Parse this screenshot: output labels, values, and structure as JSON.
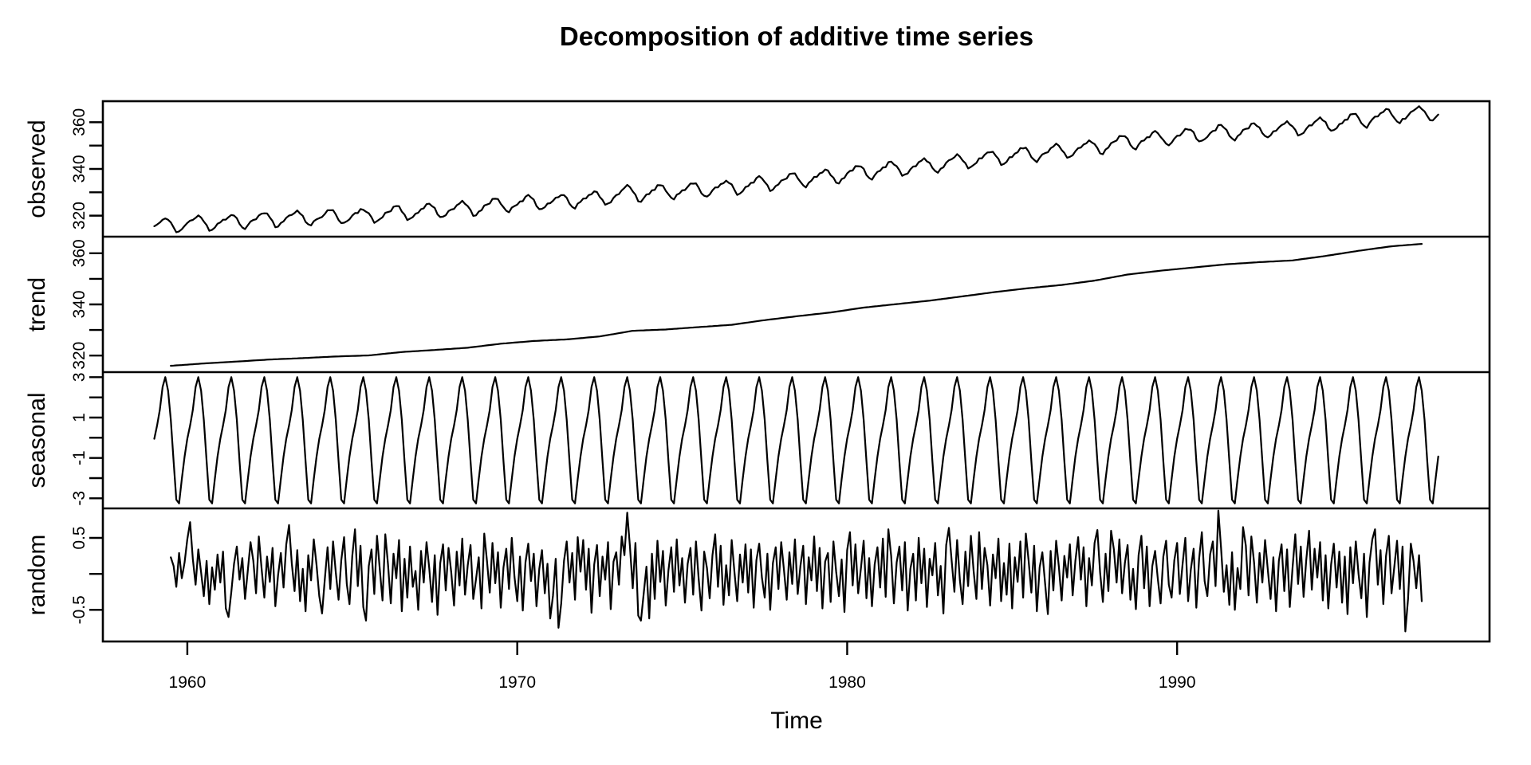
{
  "figure": {
    "title": "Decomposition of additive time series",
    "x_axis_label": "Time"
  },
  "chart_data": {
    "type": "line",
    "title": "Decomposition of additive time series",
    "xlabel": "Time",
    "line_color": "#000000",
    "background_color": "#ffffff",
    "grid": "off",
    "x_start": 1959,
    "frequency": 12,
    "n_points": 468,
    "xlim": [
      1957.44,
      1999.47
    ],
    "x_ticks": [
      1960,
      1970,
      1980,
      1990
    ],
    "x_tick_labels": [
      "1960",
      "1970",
      "1980",
      "1990"
    ],
    "panels": [
      {
        "name": "observed",
        "ylim": [
          311.0,
          369.0
        ],
        "tick_values": [
          320,
          330,
          340,
          350,
          360
        ],
        "tick_labels": [
          "320",
          "",
          "340",
          "",
          "360"
        ],
        "derivation": "trend + seasonal + random"
      },
      {
        "name": "trend",
        "ylim": [
          313.5,
          366.5
        ],
        "tick_values": [
          320,
          330,
          340,
          350,
          360
        ],
        "tick_labels": [
          "320",
          "",
          "340",
          "",
          "360"
        ],
        "anchor_start_year": 1959.5,
        "anchor_step_years": 1,
        "annual_values": [
          315.98,
          316.91,
          317.64,
          318.45,
          318.99,
          319.62,
          320.04,
          321.37,
          322.18,
          323.05,
          324.62,
          325.68,
          326.32,
          327.46,
          329.68,
          330.19,
          331.12,
          332.03,
          333.84,
          335.41,
          336.84,
          338.76,
          340.12,
          341.48,
          343.15,
          344.87,
          346.35,
          347.61,
          349.31,
          351.69,
          353.2,
          354.45,
          355.7,
          356.54,
          357.21,
          358.96,
          360.97,
          362.74,
          363.76
        ],
        "plot_range_years": [
          1959.5,
          1997.417
        ]
      },
      {
        "name": "seasonal",
        "ylim": [
          -3.5,
          3.25
        ],
        "tick_values": [
          -3,
          -2,
          -1,
          0,
          1,
          2,
          3
        ],
        "tick_labels": [
          "-3",
          "",
          "-1",
          "",
          "1",
          "",
          "3"
        ],
        "monthly_figure": [
          -0.05,
          0.61,
          1.37,
          2.51,
          3.0,
          2.33,
          0.89,
          -1.16,
          -3.07,
          -3.25,
          -2.05,
          -0.93
        ]
      },
      {
        "name": "random",
        "ylim": [
          -0.94,
          0.91
        ],
        "tick_values": [
          -0.5,
          0,
          0.5
        ],
        "tick_labels": [
          "-0.5",
          "",
          "0.5"
        ],
        "values": [
          null,
          null,
          null,
          null,
          null,
          null,
          0.23,
          0.11,
          -0.18,
          0.29,
          -0.06,
          0.16,
          0.48,
          0.72,
          0.21,
          -0.15,
          0.34,
          0.02,
          -0.31,
          0.18,
          -0.42,
          0.09,
          -0.22,
          0.27,
          -0.12,
          0.31,
          -0.48,
          -0.6,
          -0.25,
          0.14,
          0.38,
          -0.08,
          0.22,
          -0.35,
          0.05,
          0.44,
          0.18,
          -0.27,
          0.52,
          0.08,
          -0.33,
          0.24,
          -0.11,
          0.36,
          -0.45,
          -0.02,
          0.29,
          -0.19,
          0.41,
          0.68,
          0.15,
          -0.24,
          0.33,
          -0.38,
          0.07,
          -0.52,
          0.26,
          -0.09,
          0.48,
          0.12,
          -0.31,
          -0.55,
          -0.08,
          0.37,
          -0.21,
          0.45,
          0.02,
          -0.36,
          0.19,
          0.51,
          -0.14,
          -0.42,
          0.25,
          0.62,
          -0.17,
          0.39,
          -0.46,
          -0.65,
          0.11,
          0.34,
          -0.28,
          0.53,
          0.06,
          -0.37,
          0.55,
          0.13,
          -0.41,
          0.28,
          -0.06,
          0.47,
          -0.52,
          0.21,
          -0.33,
          0.38,
          -0.18,
          0.04,
          -0.5,
          0.32,
          -0.12,
          0.44,
          0.08,
          -0.39,
          0.26,
          -0.57,
          0.15,
          0.41,
          -0.23,
          0.36,
          0.02,
          -0.44,
          0.31,
          -0.16,
          0.49,
          -0.29,
          0.12,
          0.4,
          -0.35,
          -0.07,
          0.23,
          -0.48,
          0.56,
          0.18,
          -0.26,
          0.43,
          -0.13,
          0.3,
          -0.47,
          0.09,
          0.35,
          -0.21,
          0.5,
          -0.04,
          -0.38,
          0.24,
          -0.51,
          0.16,
          0.42,
          -0.1,
          0.28,
          -0.45,
          0.07,
          0.33,
          -0.27,
          0.14,
          -0.62,
          -0.3,
          0.21,
          -0.75,
          -0.41,
          0.18,
          0.45,
          -0.12,
          0.29,
          -0.36,
          0.51,
          0.03,
          0.47,
          -0.22,
          0.35,
          -0.54,
          0.13,
          0.4,
          -0.31,
          0.24,
          -0.08,
          0.44,
          -0.49,
          0.17,
          0.3,
          -0.15,
          0.52,
          0.26,
          0.85,
          0.38,
          -0.2,
          0.43,
          -0.58,
          -0.65,
          -0.27,
          0.1,
          -0.62,
          0.28,
          -0.35,
          0.46,
          -0.11,
          0.32,
          -0.44,
          0.05,
          0.37,
          -0.25,
          0.48,
          -0.16,
          0.22,
          -0.4,
          0.14,
          0.36,
          -0.29,
          0.45,
          -0.07,
          -0.51,
          0.31,
          0.08,
          -0.34,
          0.26,
          0.55,
          -0.18,
          0.39,
          -0.43,
          0.12,
          -0.3,
          0.47,
          0.02,
          -0.38,
          0.27,
          -0.12,
          0.41,
          -0.26,
          0.34,
          -0.47,
          0.19,
          0.42,
          -0.05,
          -0.33,
          0.28,
          -0.5,
          0.15,
          0.37,
          -0.21,
          0.44,
          0.06,
          -0.36,
          0.3,
          -0.14,
          0.48,
          -0.28,
          0.11,
          0.39,
          -0.42,
          0.23,
          -0.09,
          0.52,
          -0.24,
          0.36,
          -0.48,
          0.17,
          0.29,
          -0.39,
          0.45,
          0.03,
          -0.31,
          0.2,
          -0.53,
          0.33,
          0.58,
          -0.16,
          0.41,
          -0.27,
          0.08,
          0.46,
          -0.34,
          0.22,
          -0.45,
          0.13,
          0.37,
          -0.19,
          0.49,
          -0.32,
          0.62,
          0.25,
          -0.41,
          0.16,
          0.38,
          -0.23,
          0.44,
          -0.51,
          0.07,
          0.28,
          -0.37,
          0.5,
          -0.13,
          0.35,
          -0.46,
          0.21,
          -0.02,
          0.43,
          -0.3,
          0.11,
          -0.55,
          0.4,
          0.64,
          0.19,
          -0.25,
          0.47,
          -0.09,
          -0.42,
          0.31,
          -0.17,
          0.53,
          0.04,
          -0.35,
          0.58,
          -0.21,
          0.36,
          0.12,
          -0.44,
          0.27,
          -0.06,
          0.49,
          -0.38,
          0.15,
          -0.29,
          0.42,
          -0.48,
          0.23,
          -0.11,
          0.45,
          -0.33,
          0.56,
          0.18,
          -0.26,
          0.39,
          -0.52,
          0.09,
          0.3,
          -0.14,
          -0.56,
          0.32,
          -0.23,
          0.46,
          0.1,
          -0.37,
          0.25,
          -0.05,
          0.41,
          -0.3,
          0.18,
          0.51,
          -0.08,
          0.37,
          -0.45,
          0.22,
          -0.16,
          0.43,
          0.61,
          0.02,
          -0.39,
          0.28,
          -0.24,
          0.6,
          0.34,
          -0.12,
          0.48,
          -0.27,
          0.15,
          0.4,
          -0.36,
          0.07,
          -0.49,
          0.26,
          0.53,
          -0.2,
          0.38,
          -0.45,
          0.11,
          0.32,
          -0.07,
          -0.41,
          0.24,
          0.46,
          -0.15,
          -0.33,
          0.19,
          0.43,
          -0.28,
          0.14,
          0.5,
          -0.38,
          0.06,
          0.35,
          -0.47,
          0.21,
          0.58,
          -0.1,
          -0.31,
          0.27,
          0.45,
          -0.17,
          0.88,
          0.36,
          -0.25,
          0.12,
          -0.43,
          0.3,
          -0.5,
          0.08,
          -0.21,
          0.65,
          0.39,
          -0.3,
          0.52,
          0.16,
          -0.4,
          0.29,
          -0.12,
          0.47,
          0.05,
          -0.35,
          0.23,
          -0.52,
          0.18,
          0.41,
          -0.24,
          0.34,
          -0.46,
          0.09,
          0.55,
          -0.14,
          0.38,
          -0.32,
          0.2,
          0.6,
          -0.22,
          0.35,
          -0.05,
          0.44,
          -0.37,
          0.26,
          -0.48,
          0.13,
          0.42,
          -0.19,
          0.31,
          -0.4,
          0.24,
          -0.56,
          0.37,
          -0.13,
          0.45,
          0.0,
          -0.34,
          0.28,
          -0.6,
          0.16,
          0.48,
          0.62,
          -0.15,
          0.33,
          -0.42,
          0.25,
          0.53,
          -0.27,
          0.1,
          0.46,
          -0.21,
          0.38,
          -0.8,
          -0.35,
          0.42,
          0.18,
          -0.2,
          0.26,
          -0.38,
          null,
          null,
          null,
          null,
          null,
          null
        ]
      }
    ]
  }
}
